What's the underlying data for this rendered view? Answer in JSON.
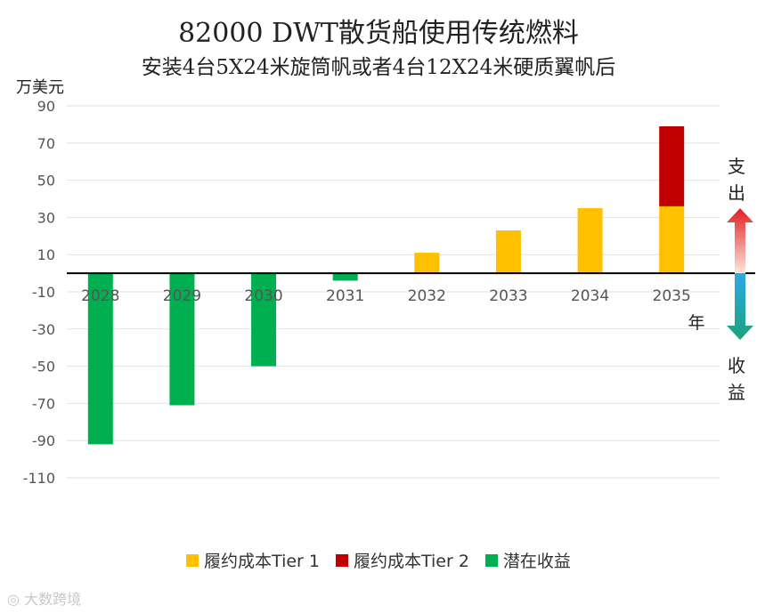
{
  "title": "82000 DWT散货船使用传统燃料",
  "subtitle": "安装4台5X24米旋筒帆或者4台12X24米硬质翼帆后",
  "watermark": "大数跨境",
  "side_labels": {
    "expense": "支出",
    "income": "收益"
  },
  "chart_data": {
    "type": "bar",
    "ylabel": "万美元",
    "xlabel": "年",
    "categories": [
      "2028",
      "2029",
      "2030",
      "2031",
      "2032",
      "2033",
      "2034",
      "2035"
    ],
    "y_ticks": [
      90,
      70,
      50,
      30,
      10,
      -10,
      -30,
      -50,
      -70,
      -90,
      -110
    ],
    "ylim": [
      -110,
      90
    ],
    "grid": true,
    "legend_position": "bottom",
    "series": [
      {
        "name": "履约成本Tier 1",
        "color": "#FFC000",
        "values": [
          0,
          0,
          0,
          0,
          11,
          23,
          35,
          36
        ]
      },
      {
        "name": "履约成本Tier 2",
        "color": "#C00000",
        "values": [
          0,
          0,
          0,
          0,
          0,
          0,
          0,
          43
        ]
      },
      {
        "name": "潜在收益",
        "color": "#00B050",
        "values": [
          -92,
          -71,
          -50,
          -4,
          0,
          0,
          0,
          0
        ]
      }
    ]
  }
}
